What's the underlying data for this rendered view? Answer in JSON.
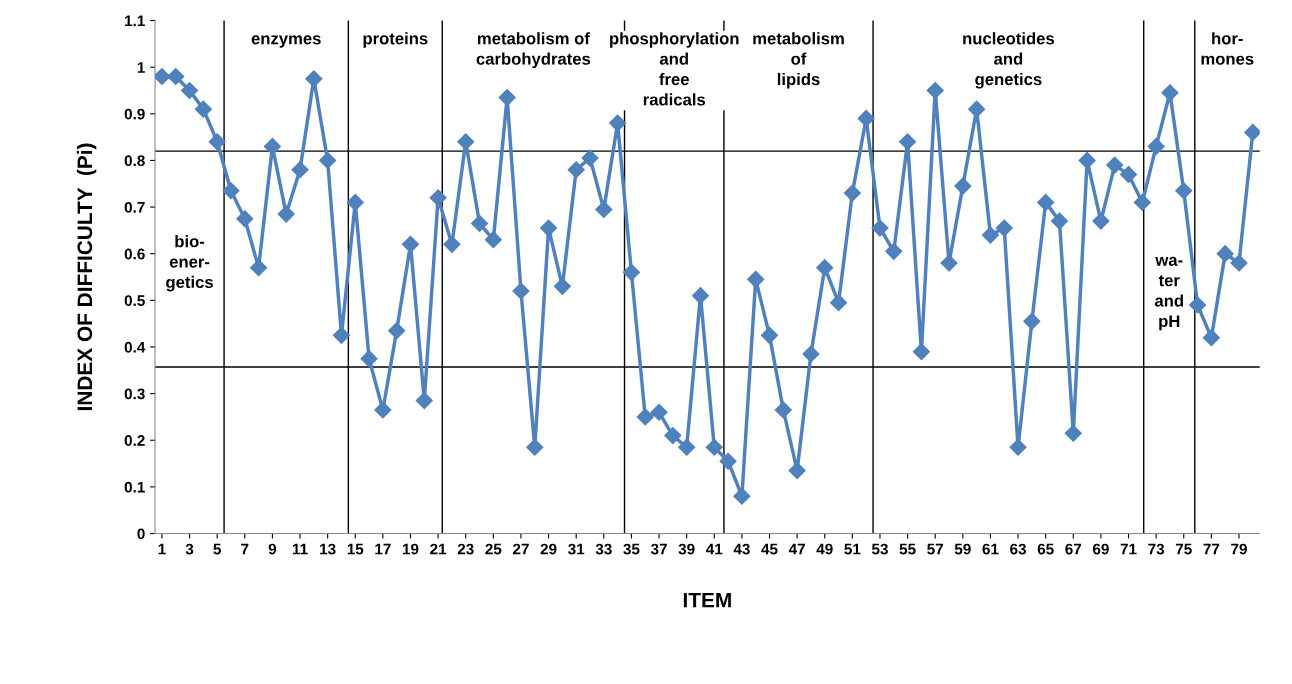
{
  "chart_data": {
    "type": "line",
    "xlabel": "ITEM",
    "ylabel": "INDEX OF DIFFICULTY  (Pi)",
    "x": [
      1,
      2,
      3,
      4,
      5,
      6,
      7,
      8,
      9,
      10,
      11,
      12,
      13,
      14,
      15,
      16,
      17,
      18,
      19,
      20,
      21,
      22,
      23,
      24,
      25,
      26,
      27,
      28,
      29,
      30,
      31,
      32,
      33,
      34,
      35,
      36,
      37,
      38,
      39,
      40,
      41,
      42,
      43,
      44,
      45,
      46,
      47,
      48,
      49,
      50,
      51,
      52,
      53,
      54,
      55,
      56,
      57,
      58,
      59,
      60,
      61,
      62,
      63,
      64,
      65,
      66,
      67,
      68,
      69,
      70,
      71,
      72,
      73,
      74,
      75,
      76,
      77,
      78,
      79,
      80
    ],
    "series": [
      {
        "color": "#4f81bd",
        "marker": "diamond",
        "values": [
          0.98,
          0.98,
          0.95,
          0.91,
          0.84,
          0.735,
          0.675,
          0.57,
          0.83,
          0.685,
          0.78,
          0.975,
          0.8,
          0.425,
          0.71,
          0.375,
          0.265,
          0.435,
          0.62,
          0.285,
          0.72,
          0.62,
          0.84,
          0.665,
          0.63,
          0.935,
          0.52,
          0.185,
          0.655,
          0.53,
          0.78,
          0.805,
          0.695,
          0.88,
          0.56,
          0.25,
          0.26,
          0.21,
          0.185,
          0.51,
          0.185,
          0.155,
          0.08,
          0.545,
          0.425,
          0.265,
          0.135,
          0.385,
          0.57,
          0.495,
          0.73,
          0.89,
          0.655,
          0.605,
          0.84,
          0.39,
          0.95,
          0.58,
          0.745,
          0.91,
          0.64,
          0.655,
          0.185,
          0.455,
          0.71,
          0.67,
          0.215,
          0.8,
          0.67,
          0.79,
          0.77,
          0.71,
          0.83,
          0.945,
          0.735,
          0.49,
          0.42,
          0.6,
          0.58,
          0.86
        ]
      }
    ],
    "ref_lines": [
      {
        "axis": "y",
        "value": 0.82,
        "color": "#000000"
      },
      {
        "axis": "y",
        "value": 0.357,
        "color": "#000000"
      },
      {
        "axis": "x",
        "value": 5.5,
        "color": "#000000"
      },
      {
        "axis": "x",
        "value": 14.5,
        "color": "#000000"
      },
      {
        "axis": "x",
        "value": 21.3,
        "color": "#000000"
      },
      {
        "axis": "x",
        "value": 34.5,
        "color": "#000000"
      },
      {
        "axis": "x",
        "value": 41.7,
        "color": "#000000"
      },
      {
        "axis": "x",
        "value": 52.5,
        "color": "#000000"
      },
      {
        "axis": "x",
        "value": 72.1,
        "color": "#000000"
      },
      {
        "axis": "x",
        "value": 75.8,
        "color": "#000000"
      }
    ],
    "annotations": [
      "bio-\nener-\ngetics",
      "enzymes",
      "proteins",
      "metabolism of\ncarbohydrates",
      "phosphorylation\nand\nfree\nradicals",
      "metabolism\nof\nlipids",
      "nucleotides\nand\ngenetics",
      "wa-\nter\nand\npH",
      "hor-\nmones"
    ],
    "xlim": [
      0.5,
      80.5
    ],
    "ylim": [
      0,
      1.1
    ],
    "xticks": [
      1,
      3,
      5,
      7,
      9,
      11,
      13,
      15,
      17,
      19,
      21,
      23,
      25,
      27,
      29,
      31,
      33,
      35,
      37,
      39,
      41,
      43,
      45,
      47,
      49,
      51,
      53,
      55,
      57,
      59,
      61,
      63,
      65,
      67,
      69,
      71,
      73,
      75,
      77,
      79
    ],
    "yticks": [
      0,
      0.1,
      0.2,
      0.3,
      0.4,
      0.5,
      0.6,
      0.7,
      0.8,
      0.9,
      1,
      1.1
    ],
    "grid": false
  }
}
